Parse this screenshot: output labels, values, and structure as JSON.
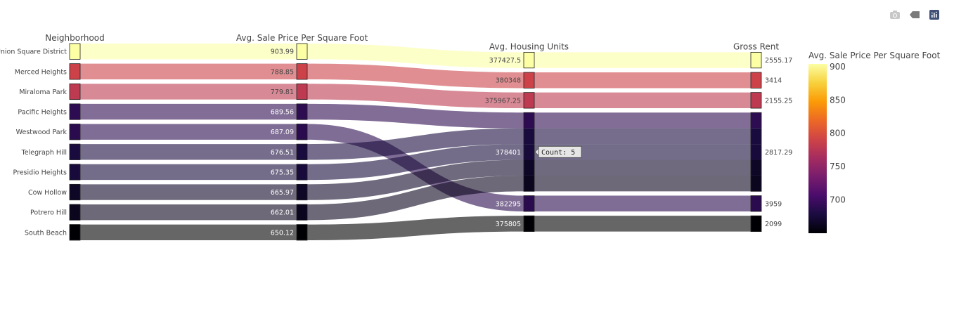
{
  "modebar": {
    "camera_icon": "camera-icon",
    "tag_icon": "tag-icon",
    "logo_icon": "plotly-logo-icon"
  },
  "tooltip": {
    "label": "Count: 5"
  },
  "chart_data": {
    "type": "parallel_categories",
    "dimensions": [
      {
        "label": "Neighborhood",
        "categories": [
          "Union Square District",
          "Merced Heights",
          "Miraloma Park",
          "Pacific Heights",
          "Westwood Park",
          "Telegraph Hill",
          "Presidio Heights",
          "Cow Hollow",
          "Potrero Hill",
          "South Beach"
        ]
      },
      {
        "label": "Avg. Sale Price Per Square Foot",
        "categories": [
          "903.99",
          "788.85",
          "779.81",
          "689.56",
          "687.09",
          "676.51",
          "675.35",
          "665.97",
          "662.01",
          "650.12"
        ]
      },
      {
        "label": "Avg. Housing Units",
        "categories": [
          "377427.5",
          "380348",
          "375967.25",
          "378401",
          "382295",
          "375805"
        ]
      },
      {
        "label": "Gross Rent",
        "categories": [
          "2555.17",
          "3414",
          "2155.25",
          "2817.29",
          "3959",
          "2099"
        ]
      }
    ],
    "records": [
      {
        "neighborhood": "Union Square District",
        "price": "903.99",
        "units": "377427.5",
        "rent": "2555.17",
        "color_value": 903.99
      },
      {
        "neighborhood": "Merced Heights",
        "price": "788.85",
        "units": "380348",
        "rent": "3414",
        "color_value": 788.85
      },
      {
        "neighborhood": "Miraloma Park",
        "price": "779.81",
        "units": "375967.25",
        "rent": "2155.25",
        "color_value": 779.81
      },
      {
        "neighborhood": "Pacific Heights",
        "price": "689.56",
        "units": "378401",
        "rent": "2817.29",
        "color_value": 689.56
      },
      {
        "neighborhood": "Westwood Park",
        "price": "687.09",
        "units": "382295",
        "rent": "3959",
        "color_value": 687.09
      },
      {
        "neighborhood": "Telegraph Hill",
        "price": "676.51",
        "units": "378401",
        "rent": "2817.29",
        "color_value": 676.51
      },
      {
        "neighborhood": "Presidio Heights",
        "price": "675.35",
        "units": "378401",
        "rent": "2817.29",
        "color_value": 675.35
      },
      {
        "neighborhood": "Cow Hollow",
        "price": "665.97",
        "units": "378401",
        "rent": "2817.29",
        "color_value": 665.97
      },
      {
        "neighborhood": "Potrero Hill",
        "price": "662.01",
        "units": "378401",
        "rent": "2817.29",
        "color_value": 662.01
      },
      {
        "neighborhood": "South Beach",
        "price": "650.12",
        "units": "375805",
        "rent": "2099",
        "color_value": 650.12
      }
    ],
    "colorbar": {
      "title": "Avg. Sale Price Per Square Foot",
      "ticks": [
        700,
        750,
        800,
        850,
        900
      ],
      "range": [
        650.12,
        903.99
      ],
      "colorscale": "inferno"
    }
  }
}
